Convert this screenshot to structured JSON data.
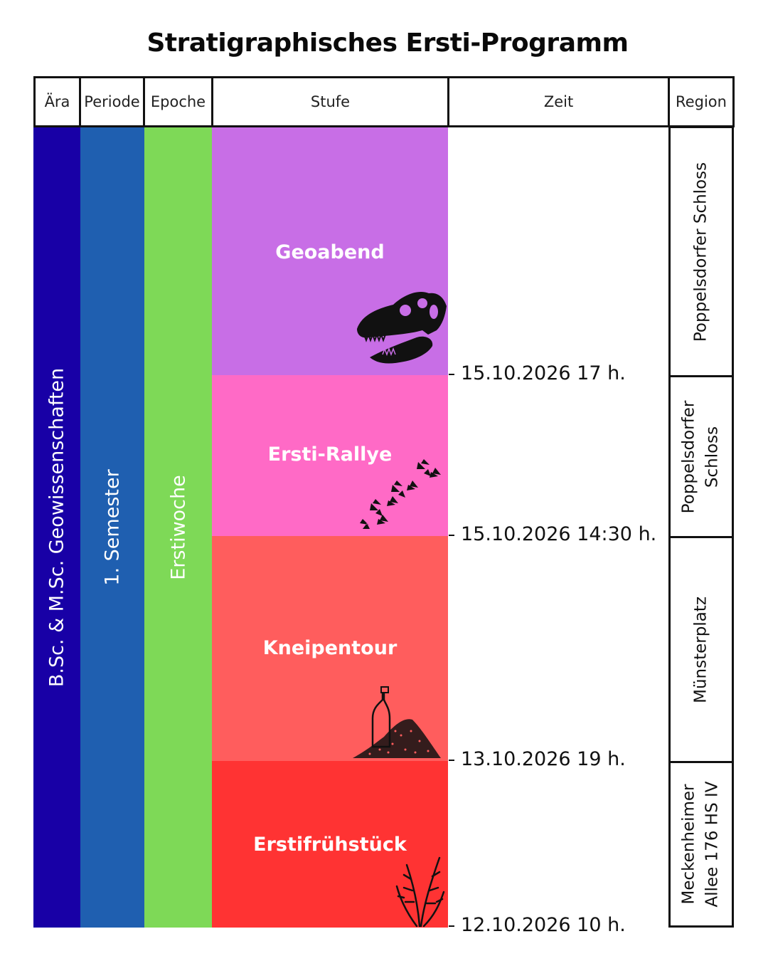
{
  "title": "Stratigraphisches Ersti-Programm",
  "headers": {
    "era": "Ära",
    "period": "Periode",
    "epoch": "Epoche",
    "stage": "Stufe",
    "time": "Zeit",
    "region": "Region"
  },
  "era": {
    "label": "B.Sc. & M.Sc. Geowissenschaften",
    "color": "#1800a6"
  },
  "period": {
    "label": "1. Semester",
    "color": "#1f5fb0"
  },
  "epoch": {
    "label": "Erstiwoche",
    "color": "#7ed957"
  },
  "stages": [
    {
      "label": "Geoabend",
      "color": "#c86ee6",
      "icon": "t-rex-skull-icon"
    },
    {
      "label": "Ersti-Rallye",
      "color": "#ff6ac6",
      "icon": "dinosaur-footprints-icon"
    },
    {
      "label": "Kneipentour",
      "color": "#ff5d5d",
      "icon": "bottle-in-sand-icon"
    },
    {
      "label": "Erstifrühstück",
      "color": "#ff3333",
      "icon": "plant-fossil-icon"
    }
  ],
  "times": [
    "15.10.2026 17 h.",
    "15.10.2026 14:30 h.",
    "13.10.2026 19 h.",
    "12.10.2026 10 h."
  ],
  "regions": [
    {
      "line1": "Poppelsdorfer Schloss",
      "line2": ""
    },
    {
      "line1": "Poppelsdorfer",
      "line2": "Schloss"
    },
    {
      "line1": "Münsterplatz",
      "line2": ""
    },
    {
      "line1": "Meckenheimer",
      "line2": "Allee 176 HS IV"
    }
  ]
}
